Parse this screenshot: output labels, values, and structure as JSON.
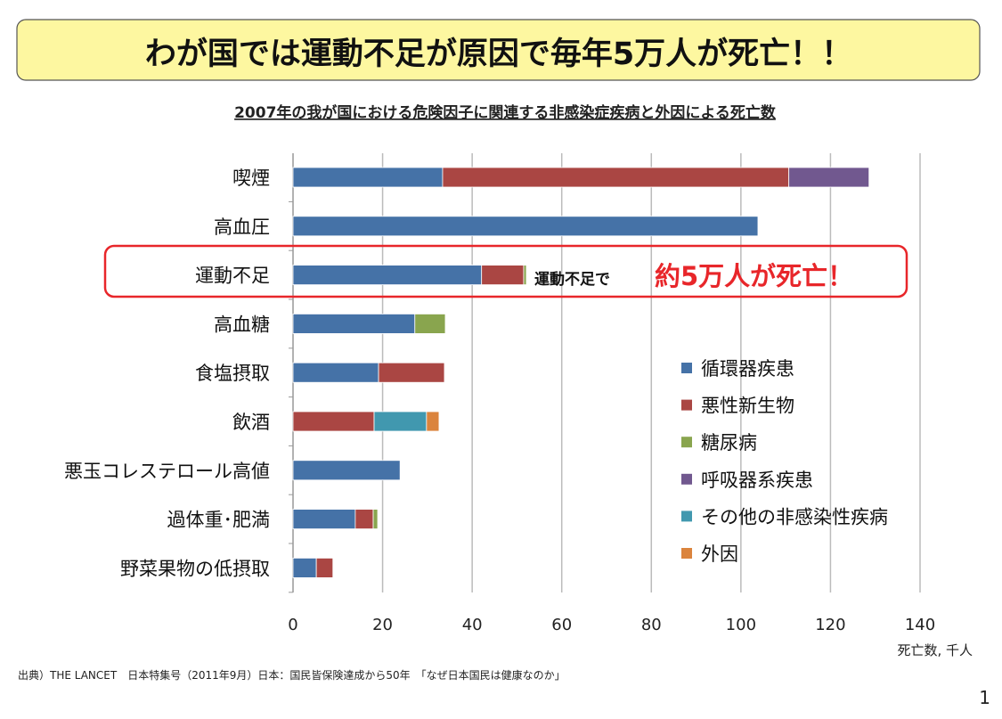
{
  "title": "わが国では運動不足が原因で毎年5万人が死亡！！",
  "colors": {
    "title_bg": "#fdf7a0",
    "highlight": "#e8262a",
    "annotation_red": "#e8262a"
  },
  "chart_data": {
    "type": "bar",
    "orientation": "horizontal",
    "stacked": true,
    "title": "2007年の我が国における危険因子に関連する非感染症疾病と外因による死亡数",
    "xlabel": "死亡数, 千人",
    "xlim": [
      0,
      140
    ],
    "xticks": [
      0,
      20,
      40,
      60,
      80,
      100,
      120,
      140
    ],
    "grid": true,
    "legend_position": "right",
    "categories": [
      "喫煙",
      "高血圧",
      "運動不足",
      "高血糖",
      "食塩摂取",
      "飲酒",
      "悪玉コレステロール高値",
      "過体重･肥満",
      "野菜果物の低摂取"
    ],
    "series": [
      {
        "name": "循環器疾患",
        "color": "#4572a7",
        "values": [
          33.4,
          103.8,
          42.1,
          27.2,
          19.1,
          0,
          23.9,
          13.9,
          5.2
        ]
      },
      {
        "name": "悪性新生物",
        "color": "#aa4643",
        "values": [
          77.3,
          0,
          9.4,
          0,
          14.7,
          18.1,
          0,
          4.0,
          3.7
        ]
      },
      {
        "name": "糖尿病",
        "color": "#89a54e",
        "values": [
          0,
          0,
          0.6,
          6.8,
          0,
          0,
          0,
          1.0,
          0
        ]
      },
      {
        "name": "呼吸器系疾患",
        "color": "#71588f",
        "values": [
          17.9,
          0,
          0,
          0,
          0,
          0,
          0,
          0,
          0
        ]
      },
      {
        "name": "その他の非感染性疾病",
        "color": "#4198af",
        "values": [
          0,
          0,
          0,
          0,
          0,
          11.7,
          0,
          0,
          0
        ]
      },
      {
        "name": "外因",
        "color": "#db843d",
        "values": [
          0,
          0,
          0,
          0,
          0,
          2.8,
          0,
          0,
          0
        ]
      }
    ],
    "annotation": {
      "prefix": "運動不足で",
      "emphasis": "約5万人が死亡！",
      "highlighted_category": "運動不足"
    }
  },
  "source": "出典）THE LANCET　日本特集号（2011年9月）日本：国民皆保険達成から50年　「なぜ日本国民は健康なのか」",
  "page_number": "1"
}
